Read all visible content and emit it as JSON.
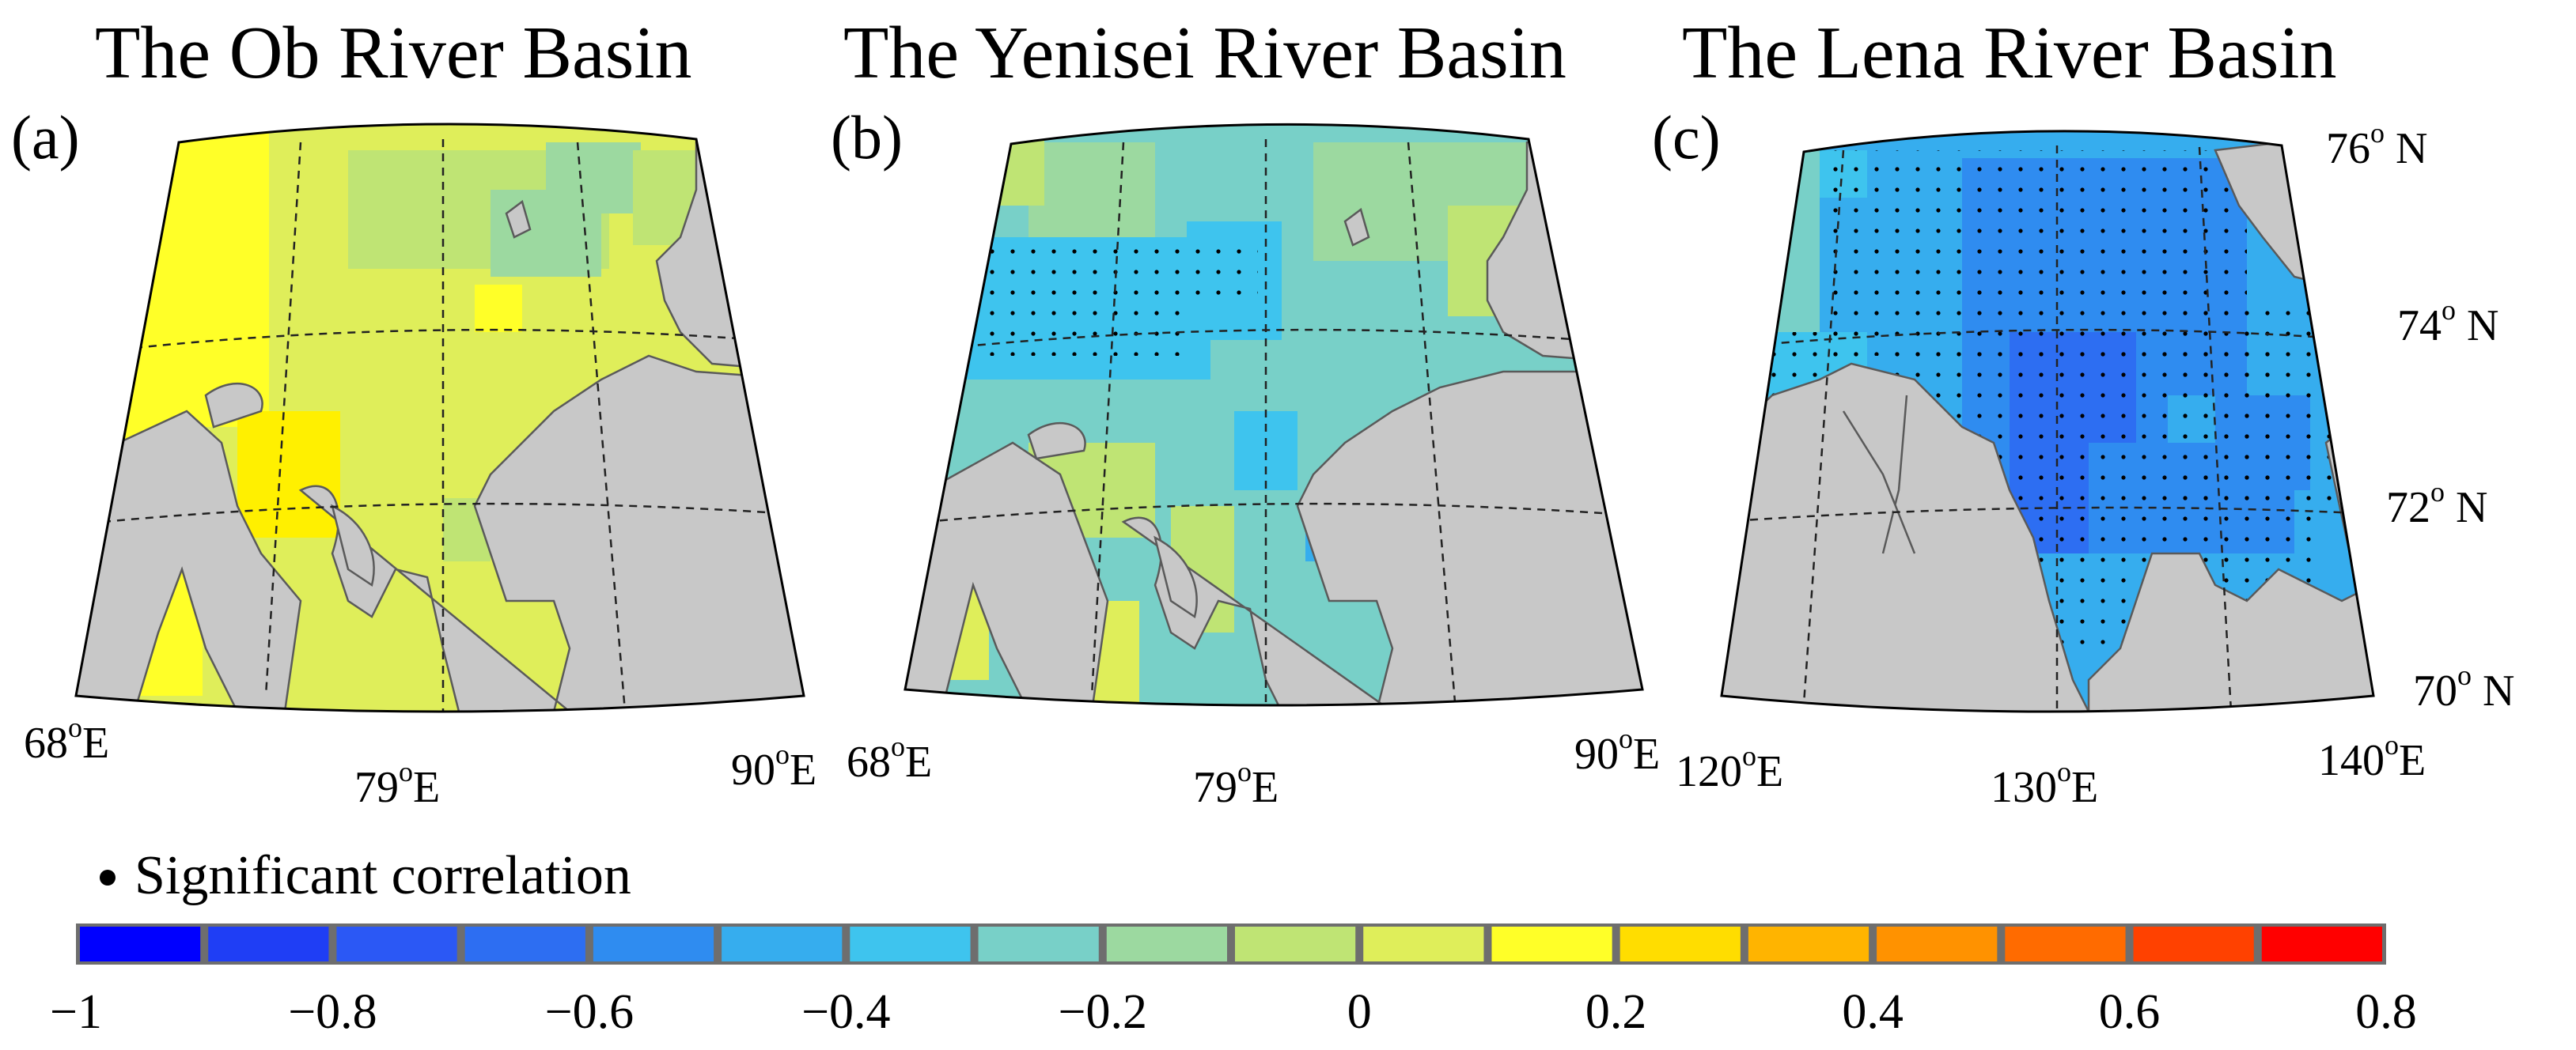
{
  "panels": [
    {
      "id": "a",
      "letter": "(a)",
      "title": "The Ob River Basin",
      "lon_labels": [
        "68",
        "79",
        "90"
      ],
      "lon_unit": "E",
      "lat_labels": [],
      "base_color": "#dfee5a",
      "significant_dots": false
    },
    {
      "id": "b",
      "letter": "(b)",
      "title": "The Yenisei River Basin",
      "lon_labels": [
        "68",
        "79",
        "90"
      ],
      "lon_unit": "E",
      "lat_labels": [],
      "base_color": "#78d0c8",
      "significant_dots": "partial"
    },
    {
      "id": "c",
      "letter": "(c)",
      "title": "The Lena River Basin",
      "lon_labels": [
        "120",
        "130",
        "140"
      ],
      "lon_unit": "E",
      "lat_labels": [
        "76",
        "74",
        "72",
        "70"
      ],
      "lat_unit": " N",
      "base_color": "#2ea2f2",
      "significant_dots": true
    }
  ],
  "degree_symbol": "o",
  "legend": {
    "marker": "black-dot",
    "label": "Significant correlation"
  },
  "colorbar": {
    "colors": [
      "#0000ff",
      "#1f3ef5",
      "#2b58f5",
      "#2d6ef2",
      "#2f8cf0",
      "#36adee",
      "#3ec4ee",
      "#78d0c8",
      "#9cd9a0",
      "#bfe474",
      "#dfee5a",
      "#ffff28",
      "#ffdd00",
      "#ffb400",
      "#ff9200",
      "#ff6b00",
      "#ff4100",
      "#ff0000"
    ],
    "tick_labels": [
      "−1",
      "−0.8",
      "−0.6",
      "−0.4",
      "−0.2",
      "0",
      "0.2",
      "0.4",
      "0.6",
      "0.8"
    ],
    "separator_color": "#6e6e6e"
  },
  "map_colors": {
    "land": "#c8c8c8",
    "coast": "#5a5a5a"
  }
}
